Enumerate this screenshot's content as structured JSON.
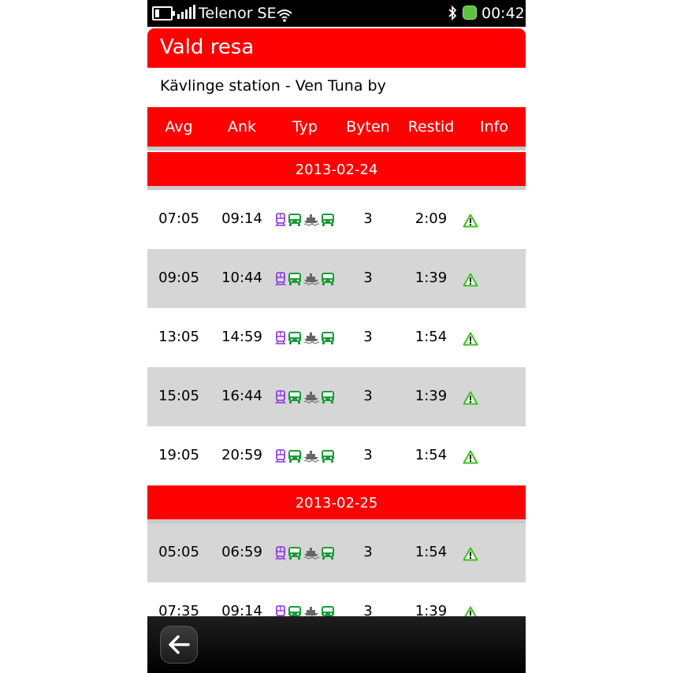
{
  "status_bar": {
    "carrier": "Telenor SE",
    "time": "00:42",
    "icons": [
      "battery-icon",
      "signal-icon",
      "wifi-icon",
      "bluetooth-icon",
      "status-indicator-icon"
    ]
  },
  "title": "Vald resa",
  "route": "Kävlinge station - Ven Tuna by",
  "columns": [
    "Avg",
    "Ank",
    "Typ",
    "Byten",
    "Restid",
    "Info"
  ],
  "colors": {
    "accent": "#ff0000",
    "alt_row": "#d6d6d6",
    "train": "#8a2be2",
    "bus": "#1a9a3a",
    "boat": "#666666",
    "warning": "#36c316"
  },
  "transport_icons": [
    "train-icon",
    "bus-icon",
    "boat-icon",
    "bus-icon"
  ],
  "days": [
    {
      "date": "2013-02-24",
      "trips": [
        {
          "avg": "07:05",
          "ank": "09:14",
          "byten": "3",
          "restid": "2:09"
        },
        {
          "avg": "09:05",
          "ank": "10:44",
          "byten": "3",
          "restid": "1:39"
        },
        {
          "avg": "13:05",
          "ank": "14:59",
          "byten": "3",
          "restid": "1:54"
        },
        {
          "avg": "15:05",
          "ank": "16:44",
          "byten": "3",
          "restid": "1:39"
        },
        {
          "avg": "19:05",
          "ank": "20:59",
          "byten": "3",
          "restid": "1:54"
        }
      ]
    },
    {
      "date": "2013-02-25",
      "trips": [
        {
          "avg": "05:05",
          "ank": "06:59",
          "byten": "3",
          "restid": "1:54"
        },
        {
          "avg": "07:35",
          "ank": "09:14",
          "byten": "3",
          "restid": "1:39"
        }
      ]
    }
  ],
  "back_button": "arrow-left-icon"
}
